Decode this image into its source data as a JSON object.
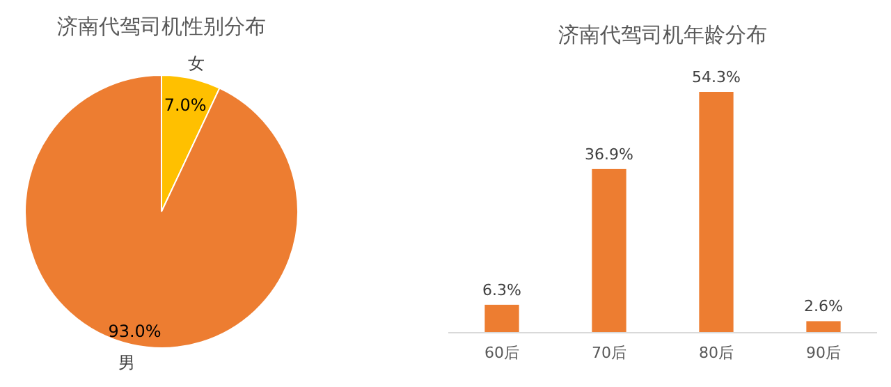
{
  "chart_data": [
    {
      "type": "pie",
      "title": "济南代驾司机性别分布",
      "categories": [
        "女",
        "男"
      ],
      "values": [
        7.0,
        93.0
      ],
      "colors": [
        "#ffc000",
        "#ed7d31"
      ],
      "value_labels": [
        "7.0%",
        "93.0%"
      ]
    },
    {
      "type": "bar",
      "title": "济南代驾司机年龄分布",
      "categories": [
        "60后",
        "70后",
        "80后",
        "90后"
      ],
      "values": [
        6.3,
        36.9,
        54.3,
        2.6
      ],
      "color": "#ed7d31",
      "value_labels": [
        "6.3%",
        "36.9%",
        "54.3%",
        "2.6%"
      ]
    }
  ]
}
